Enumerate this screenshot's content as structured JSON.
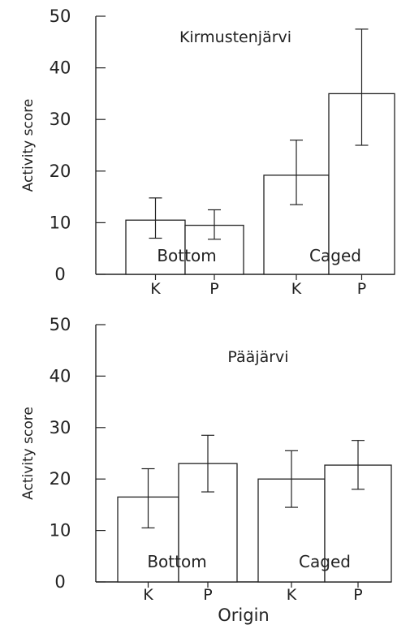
{
  "chart_data": [
    {
      "type": "bar",
      "title": "Kirmustenjärvi",
      "ylabel": "Activity score",
      "xlabel": "",
      "ylim": [
        0,
        50
      ],
      "yticks": [
        "0",
        "10",
        "20",
        "30",
        "40",
        "50"
      ],
      "groups": [
        "Bottom",
        "Caged"
      ],
      "categories": [
        "K",
        "P",
        "K",
        "P"
      ],
      "bar_group": [
        "Bottom",
        "Bottom",
        "Caged",
        "Caged"
      ],
      "values": [
        10.5,
        9.5,
        19.2,
        35.0
      ],
      "error_low": [
        7.0,
        6.8,
        13.5,
        25.0
      ],
      "error_high": [
        14.8,
        12.5,
        26.0,
        47.5
      ],
      "grid": false,
      "bar_color": "#ffffff",
      "line_color": "#222222"
    },
    {
      "type": "bar",
      "title": "Pääjärvi",
      "ylabel": "Activity score",
      "xlabel": "Origin",
      "ylim": [
        0,
        50
      ],
      "yticks": [
        "0",
        "10",
        "20",
        "30",
        "40",
        "50"
      ],
      "groups": [
        "Bottom",
        "Caged"
      ],
      "categories": [
        "K",
        "P",
        "K",
        "P"
      ],
      "bar_group": [
        "Bottom",
        "Bottom",
        "Caged",
        "Caged"
      ],
      "values": [
        16.5,
        23.0,
        20.0,
        22.7
      ],
      "error_low": [
        10.5,
        17.5,
        14.5,
        18.0
      ],
      "error_high": [
        22.0,
        28.5,
        25.5,
        27.5
      ],
      "grid": false,
      "bar_color": "#ffffff",
      "line_color": "#222222"
    }
  ]
}
